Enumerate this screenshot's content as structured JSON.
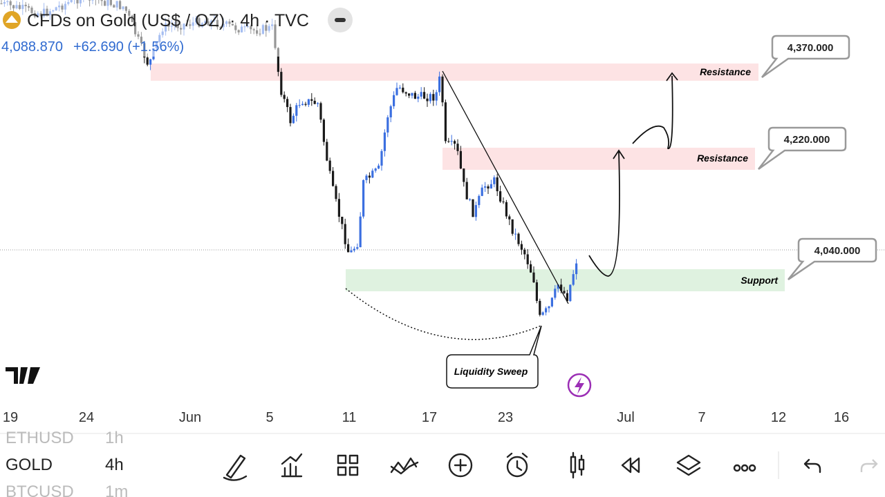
{
  "header": {
    "title": "CFDs on Gold (US$ / OZ) · 4h · TVC",
    "price": "4,088.870",
    "change": "+62.690 (+1.56%)"
  },
  "zones": [
    {
      "label": "Resistance",
      "price": "4,370.000"
    },
    {
      "label": "Resistance",
      "price": "4,220.000"
    },
    {
      "label": "Support",
      "price": "4,040.000"
    }
  ],
  "callout": "Liquidity Sweep",
  "time_axis": [
    "19",
    "24",
    "Jun",
    "5",
    "11",
    "17",
    "23",
    "Jul",
    "7",
    "12",
    "16"
  ],
  "watchlist": [
    {
      "symbol": "ETHUSD",
      "interval": "1h"
    },
    {
      "symbol": "GOLD",
      "interval": "4h"
    },
    {
      "symbol": "BTCUSD",
      "interval": "1m"
    }
  ]
}
